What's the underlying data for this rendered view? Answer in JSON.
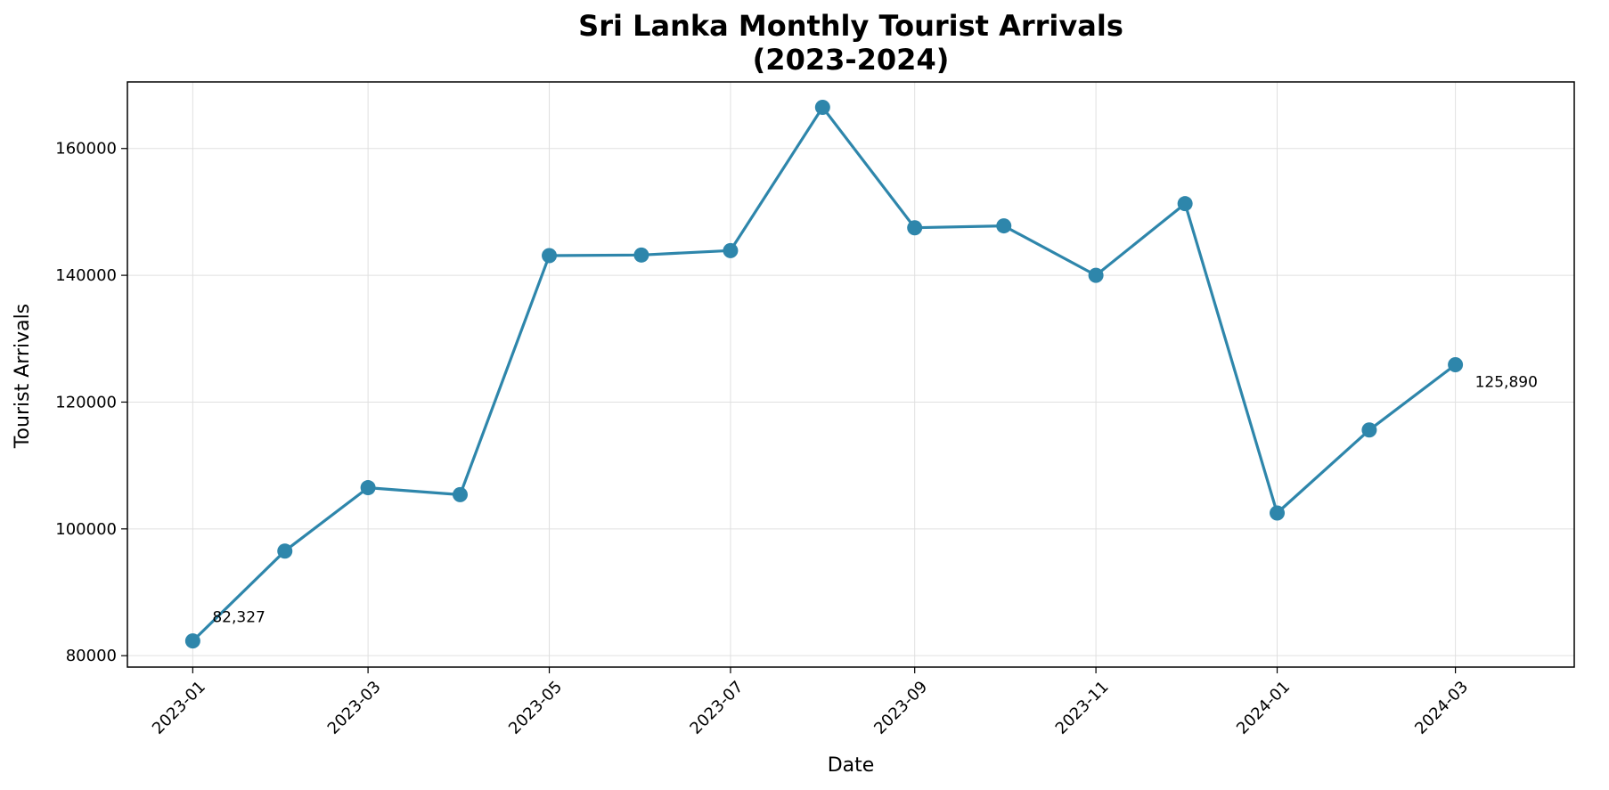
{
  "chart_data": {
    "type": "line",
    "title_line1": "Sri Lanka Monthly Tourist Arrivals",
    "title_line2": "(2023-2024)",
    "xlabel": "Date",
    "ylabel": "Tourist Arrivals",
    "x": [
      "2023-01",
      "2023-02",
      "2023-03",
      "2023-04",
      "2023-05",
      "2023-06",
      "2023-07",
      "2023-08",
      "2023-09",
      "2023-10",
      "2023-11",
      "2023-12",
      "2024-01",
      "2024-02",
      "2024-03"
    ],
    "series": [
      {
        "values": [
          82327,
          96500,
          106500,
          105400,
          143100,
          143200,
          143900,
          166500,
          147500,
          147800,
          140000,
          151300,
          102500,
          115600,
          125890
        ],
        "color": "#2e86ab"
      }
    ],
    "x_ticks": [
      "2023-01",
      "2023-03",
      "2023-05",
      "2023-07",
      "2023-09",
      "2023-11",
      "2024-01",
      "2024-03"
    ],
    "y_ticks": [
      80000,
      100000,
      120000,
      140000,
      160000
    ],
    "y_tick_labels": [
      "80000",
      "100000",
      "120000",
      "140000",
      "160000"
    ],
    "ylim": [
      78200,
      170500
    ],
    "xlim": [
      "2022-12-10",
      "2024-04-10"
    ],
    "annotations": [
      {
        "index": 0,
        "text": "82,327"
      },
      {
        "index": 14,
        "text": "125,890"
      }
    ],
    "grid": true
  }
}
